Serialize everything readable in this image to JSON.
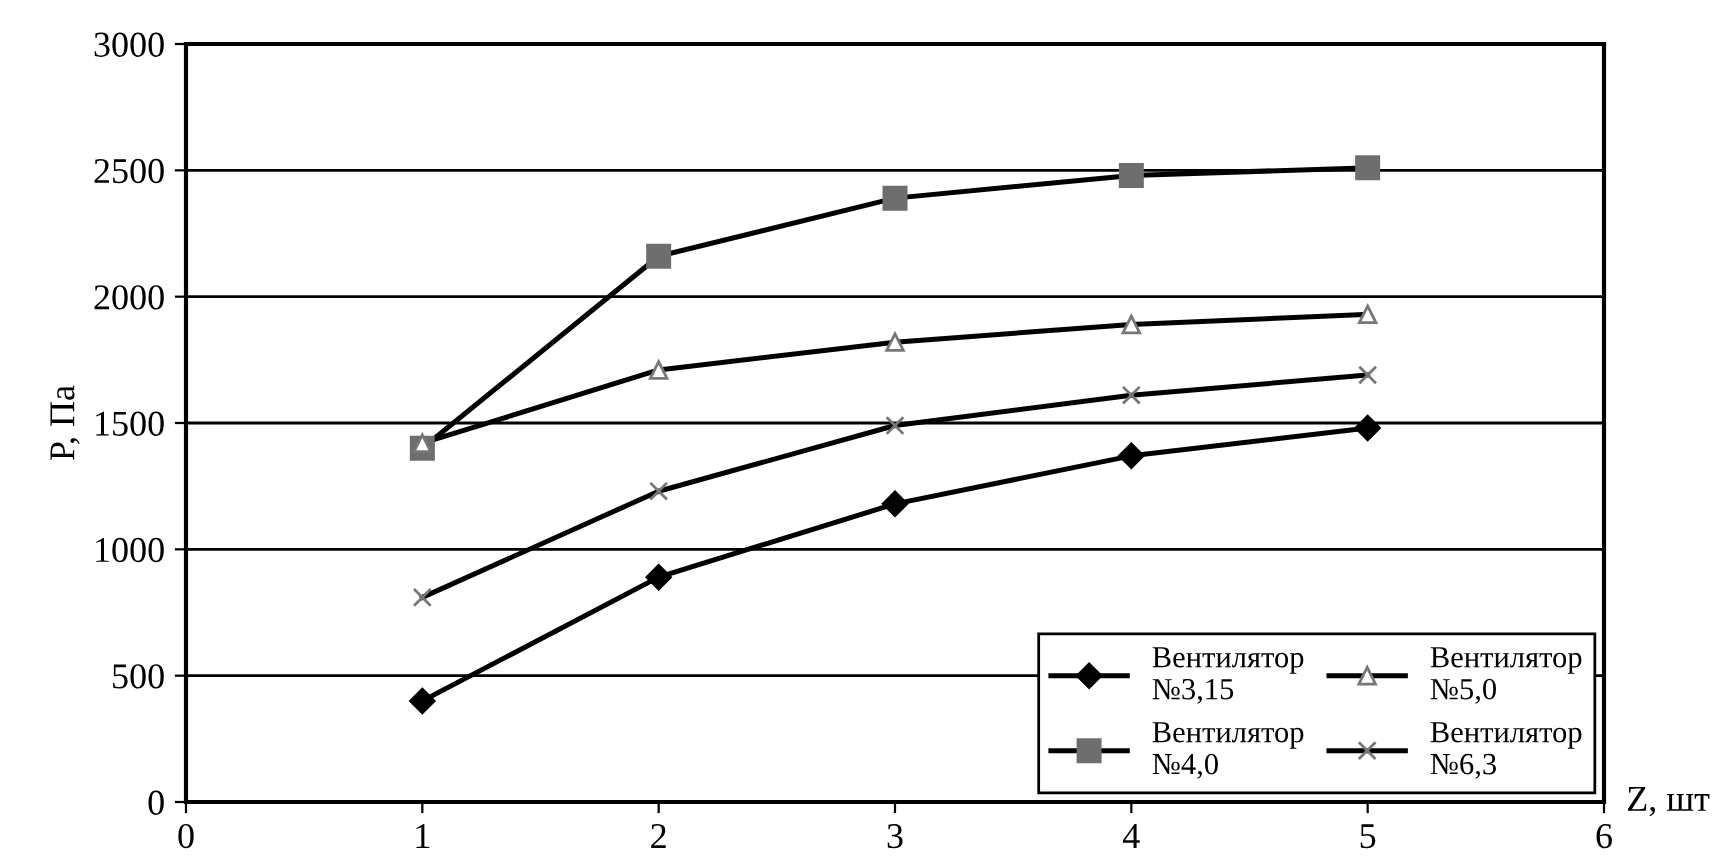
{
  "chart_data": {
    "type": "line",
    "xlabel": "Z, шт",
    "ylabel": "P, Па",
    "x": [
      1,
      2,
      3,
      4,
      5
    ],
    "series": [
      {
        "name": "Вентилятор №3,15",
        "color": "#000000",
        "marker": "diamond",
        "values": [
          400,
          890,
          1180,
          1370,
          1480
        ]
      },
      {
        "name": "Вентилятор №4,0",
        "color": "#000000",
        "marker": "square",
        "values": [
          1400,
          2160,
          2390,
          2480,
          2510
        ]
      },
      {
        "name": "Вентилятор №5,0",
        "color": "#000000",
        "marker": "triangle",
        "values": [
          1420,
          1710,
          1820,
          1890,
          1930
        ]
      },
      {
        "name": "Вентилятор №6,3",
        "color": "#000000",
        "marker": "cross",
        "values": [
          810,
          1230,
          1490,
          1610,
          1690
        ]
      }
    ],
    "xlim": [
      0,
      6
    ],
    "xticks": [
      0,
      1,
      2,
      3,
      4,
      5,
      6
    ],
    "ylim": [
      0,
      3000
    ],
    "yticks": [
      0,
      500,
      1000,
      1500,
      2000,
      2500,
      3000
    ],
    "grid": "y",
    "legend": "bottom right",
    "line_style": "solid"
  }
}
